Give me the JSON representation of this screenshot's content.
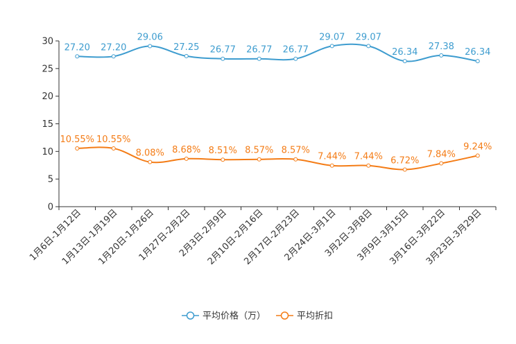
{
  "chart_data": {
    "type": "line",
    "title": "",
    "xlabel": "",
    "ylabel": "",
    "ylim": [
      0,
      30
    ],
    "yticks": [
      0,
      5,
      10,
      15,
      20,
      25,
      30
    ],
    "grid": false,
    "legend_position": "bottom-center",
    "categories": [
      "1月6日-1月12日",
      "1月13日-1月19日",
      "1月20日-1月26日",
      "1月27日-2月2日",
      "2月3日-2月9日",
      "2月10日-2月16日",
      "2月17日-2月23日",
      "2月24日-3月1日",
      "3月2日-3月8日",
      "3月9日-3月15日",
      "3月16日-3月22日",
      "3月23日-3月29日"
    ],
    "series": [
      {
        "name": "平均价格（万）",
        "color": "#3d9ccf",
        "values": [
          27.2,
          27.2,
          29.06,
          27.25,
          26.77,
          26.77,
          26.77,
          29.07,
          29.07,
          26.34,
          27.38,
          26.34
        ],
        "labels": [
          "27.20",
          "27.20",
          "29.06",
          "27.25",
          "26.77",
          "26.77",
          "26.77",
          "29.07",
          "29.07",
          "26.34",
          "27.38",
          "26.34"
        ]
      },
      {
        "name": "平均折扣",
        "color": "#f47c16",
        "values": [
          10.55,
          10.55,
          8.08,
          8.68,
          8.51,
          8.57,
          8.57,
          7.44,
          7.44,
          6.72,
          7.84,
          9.24
        ],
        "labels": [
          "10.55%",
          "10.55%",
          "8.08%",
          "8.68%",
          "8.51%",
          "8.57%",
          "8.57%",
          "7.44%",
          "7.44%",
          "6.72%",
          "7.84%",
          "9.24%"
        ]
      }
    ]
  }
}
